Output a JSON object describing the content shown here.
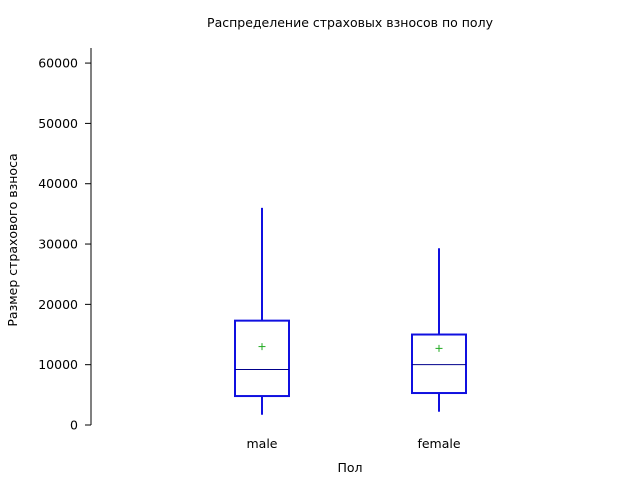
{
  "chart_data": {
    "type": "box",
    "title": "Распределение страховых взносов по полу",
    "xlabel": "Пол",
    "ylabel": "Размер страхового взноса",
    "ylim": [
      0,
      62500
    ],
    "yticks": [
      0,
      10000,
      20000,
      30000,
      40000,
      50000,
      60000
    ],
    "ytick_labels": [
      "0",
      "10000",
      "20000",
      "30000",
      "40000",
      "50000",
      "60000"
    ],
    "grid": false,
    "categories": [
      "male",
      "female"
    ],
    "boxes": [
      {
        "category": "male",
        "whisker_low": 1700,
        "q1": 4800,
        "median": 9200,
        "q3": 17300,
        "whisker_high": 36000,
        "mean": 13000
      },
      {
        "category": "female",
        "whisker_low": 2200,
        "q1": 5300,
        "median": 10000,
        "q3": 15000,
        "whisker_high": 29300,
        "mean": 12700
      }
    ],
    "colors": {
      "box": "#1010e0",
      "median": "#00008b",
      "mean": "#22aa22"
    }
  }
}
